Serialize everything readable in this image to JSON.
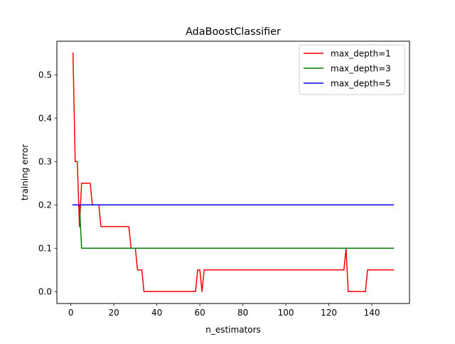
{
  "chart_data": {
    "type": "line",
    "title": "AdaBoostClassifier",
    "xlabel": "n_estimators",
    "ylabel": "training error",
    "xlim": [
      -6.5,
      157.5
    ],
    "ylim": [
      -0.0275,
      0.5775
    ],
    "xticks": [
      0,
      20,
      40,
      60,
      80,
      100,
      120,
      140
    ],
    "yticks": [
      0.0,
      0.1,
      0.2,
      0.3,
      0.4,
      0.5
    ],
    "ytick_labels": [
      "0.0",
      "0.1",
      "0.2",
      "0.3",
      "0.4",
      "0.5"
    ],
    "grid": false,
    "legend_position": "top-right",
    "series": [
      {
        "name": "max_depth=1",
        "color": "#ff0000",
        "points": [
          [
            1,
            0.55
          ],
          [
            2,
            0.3
          ],
          [
            3,
            0.3
          ],
          [
            4,
            0.15
          ],
          [
            5,
            0.25
          ],
          [
            6,
            0.25
          ],
          [
            7,
            0.25
          ],
          [
            8,
            0.25
          ],
          [
            9,
            0.25
          ],
          [
            10,
            0.2
          ],
          [
            11,
            0.2
          ],
          [
            12,
            0.2
          ],
          [
            13,
            0.2
          ],
          [
            14,
            0.15
          ],
          [
            15,
            0.15
          ],
          [
            20,
            0.15
          ],
          [
            25,
            0.15
          ],
          [
            27,
            0.15
          ],
          [
            28,
            0.1
          ],
          [
            29,
            0.1
          ],
          [
            30,
            0.1
          ],
          [
            31,
            0.05
          ],
          [
            32,
            0.05
          ],
          [
            33,
            0.05
          ],
          [
            34,
            0.0
          ],
          [
            40,
            0.0
          ],
          [
            50,
            0.0
          ],
          [
            58,
            0.0
          ],
          [
            59,
            0.05
          ],
          [
            60,
            0.05
          ],
          [
            61,
            0.0
          ],
          [
            62,
            0.05
          ],
          [
            70,
            0.05
          ],
          [
            80,
            0.05
          ],
          [
            90,
            0.05
          ],
          [
            100,
            0.05
          ],
          [
            110,
            0.05
          ],
          [
            120,
            0.05
          ],
          [
            127,
            0.05
          ],
          [
            128,
            0.1
          ],
          [
            129,
            0.0
          ],
          [
            130,
            0.0
          ],
          [
            137,
            0.0
          ],
          [
            138,
            0.05
          ],
          [
            140,
            0.05
          ],
          [
            150,
            0.05
          ]
        ]
      },
      {
        "name": "max_depth=3",
        "color": "#008000",
        "points": [
          [
            1,
            0.2
          ],
          [
            4,
            0.2
          ],
          [
            5,
            0.1
          ],
          [
            10,
            0.1
          ],
          [
            50,
            0.1
          ],
          [
            100,
            0.1
          ],
          [
            150,
            0.1
          ]
        ]
      },
      {
        "name": "max_depth=5",
        "color": "#0000ff",
        "points": [
          [
            1,
            0.2
          ],
          [
            50,
            0.2
          ],
          [
            100,
            0.2
          ],
          [
            150,
            0.2
          ]
        ]
      }
    ]
  }
}
